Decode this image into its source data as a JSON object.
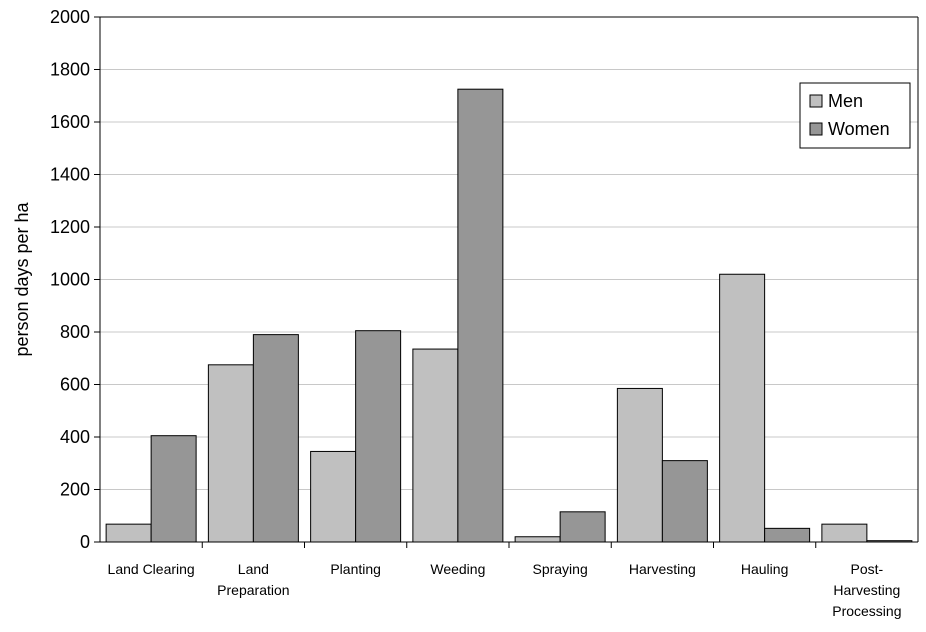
{
  "chart_data": {
    "type": "bar",
    "categories": [
      [
        "Land Clearing"
      ],
      [
        "Land",
        "Preparation"
      ],
      [
        "Planting"
      ],
      [
        "Weeding"
      ],
      [
        "Spraying"
      ],
      [
        "Harvesting"
      ],
      [
        "Hauling"
      ],
      [
        "Post-",
        "Harvesting",
        "Processing"
      ]
    ],
    "series": [
      {
        "name": "Men",
        "color": "#c0c0c0",
        "values": [
          68,
          675,
          345,
          735,
          20,
          585,
          1020,
          68
        ]
      },
      {
        "name": "Women",
        "color": "#969696",
        "values": [
          405,
          790,
          805,
          1725,
          115,
          310,
          52,
          5
        ]
      }
    ],
    "title": "",
    "xlabel": "",
    "ylabel": "person days per ha",
    "ylim": [
      0,
      2000
    ],
    "yticks": [
      0,
      200,
      400,
      600,
      800,
      1000,
      1200,
      1400,
      1600,
      1800,
      2000
    ],
    "grid": true,
    "legend": "top-right"
  }
}
